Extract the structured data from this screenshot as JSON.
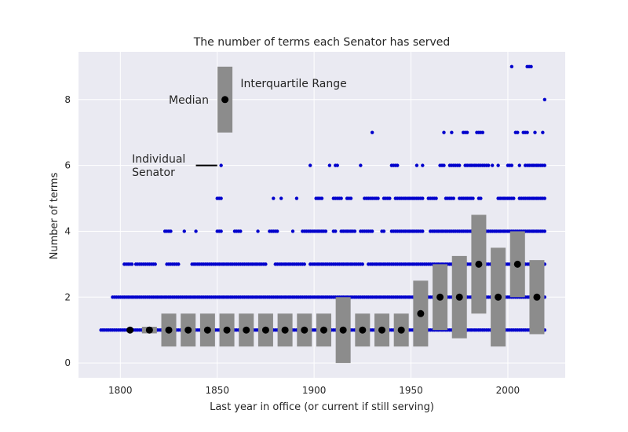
{
  "chart_data": {
    "type": "scatter",
    "title": "The number of terms each Senator has served",
    "xlabel": "Last year in office (or current if still serving)",
    "ylabel": "Number of terms",
    "xlim": [
      1778.4,
      2029.6
    ],
    "ylim": [
      -0.45,
      9.45
    ],
    "xticks": [
      1800,
      1850,
      1900,
      1950,
      2000
    ],
    "yticks": [
      0,
      2,
      4,
      6,
      8
    ],
    "grid": true,
    "background": "#eaeaf2",
    "colors": {
      "points": "#0000cc",
      "box": "#8c8c8c",
      "median": "#000000",
      "grid": "#ffffff"
    },
    "annotations": [
      {
        "text": "Interquartile Range",
        "x": 1862,
        "y": 8.5
      },
      {
        "text": "Median",
        "x": 1825,
        "y": 8
      },
      {
        "text": "Individual",
        "x": 1806,
        "y": 6.2
      },
      {
        "text": "Senator",
        "x": 1806,
        "y": 5.8
      }
    ],
    "legend_example": {
      "box": {
        "x": 1854,
        "q1": 7,
        "q3": 9
      },
      "median": {
        "x": 1854,
        "y": 8
      },
      "individual_line": {
        "x_start": 1839,
        "x_end": 1850,
        "y": 6
      }
    },
    "boxes": [
      {
        "x": 1805,
        "q1": 1,
        "median": 1,
        "q3": 1
      },
      {
        "x": 1815,
        "q1": 0.9,
        "median": 1,
        "q3": 1.1
      },
      {
        "x": 1825,
        "q1": 0.5,
        "median": 1,
        "q3": 1.5
      },
      {
        "x": 1835,
        "q1": 0.5,
        "median": 1,
        "q3": 1.5
      },
      {
        "x": 1845,
        "q1": 0.5,
        "median": 1,
        "q3": 1.5
      },
      {
        "x": 1855,
        "q1": 0.5,
        "median": 1,
        "q3": 1.5
      },
      {
        "x": 1865,
        "q1": 0.5,
        "median": 1,
        "q3": 1.5
      },
      {
        "x": 1875,
        "q1": 0.5,
        "median": 1,
        "q3": 1.5
      },
      {
        "x": 1885,
        "q1": 0.5,
        "median": 1,
        "q3": 1.5
      },
      {
        "x": 1895,
        "q1": 0.5,
        "median": 1,
        "q3": 1.5
      },
      {
        "x": 1905,
        "q1": 0.5,
        "median": 1,
        "q3": 1.5
      },
      {
        "x": 1915,
        "q1": 0,
        "median": 1,
        "q3": 2
      },
      {
        "x": 1925,
        "q1": 0.5,
        "median": 1,
        "q3": 1.5
      },
      {
        "x": 1935,
        "q1": 0.5,
        "median": 1,
        "q3": 1.5
      },
      {
        "x": 1945,
        "q1": 0.5,
        "median": 1,
        "q3": 1.5
      },
      {
        "x": 1955,
        "q1": 0.5,
        "median": 1.5,
        "q3": 2.5
      },
      {
        "x": 1965,
        "q1": 1,
        "median": 2,
        "q3": 3
      },
      {
        "x": 1975,
        "q1": 0.75,
        "median": 2,
        "q3": 3.25
      },
      {
        "x": 1985,
        "q1": 1.5,
        "median": 3,
        "q3": 4.5
      },
      {
        "x": 1995,
        "q1": 0.5,
        "median": 2,
        "q3": 3.5
      },
      {
        "x": 2005,
        "q1": 2,
        "median": 3,
        "q3": 4
      },
      {
        "x": 2015,
        "q1": 0.875,
        "median": 2,
        "q3": 3.125
      }
    ],
    "series": [
      {
        "y": 1,
        "segments": [
          [
            1790,
            2019
          ]
        ]
      },
      {
        "y": 2,
        "segments": [
          [
            1796,
            2019
          ]
        ]
      },
      {
        "y": 3,
        "segments": [
          [
            1802,
            1806
          ],
          [
            1808,
            1818
          ],
          [
            1824,
            1830
          ],
          [
            1837,
            1875
          ],
          [
            1880,
            1895
          ],
          [
            1898,
            1925
          ],
          [
            1928,
            2019
          ]
        ]
      },
      {
        "y": 4,
        "segments": [
          [
            1823,
            1825
          ],
          [
            1826,
            1826
          ],
          [
            1833,
            1833
          ],
          [
            1839,
            1839
          ],
          [
            1850,
            1852
          ],
          [
            1859,
            1862
          ],
          [
            1871,
            1871
          ],
          [
            1877,
            1881
          ],
          [
            1889,
            1889
          ],
          [
            1894,
            1906
          ],
          [
            1910,
            1911
          ],
          [
            1914,
            1921
          ],
          [
            1924,
            1930
          ],
          [
            1935,
            1936
          ],
          [
            1940,
            1956
          ],
          [
            1960,
            2019
          ]
        ]
      },
      {
        "y": 5,
        "segments": [
          [
            1850,
            1852
          ],
          [
            1879,
            1879
          ],
          [
            1883,
            1883
          ],
          [
            1891,
            1891
          ],
          [
            1901,
            1904
          ],
          [
            1910,
            1914
          ],
          [
            1917,
            1919
          ],
          [
            1926,
            1933
          ],
          [
            1936,
            1939
          ],
          [
            1942,
            1956
          ],
          [
            1959,
            1963
          ],
          [
            1968,
            1972
          ],
          [
            1975,
            1982
          ],
          [
            1985,
            1986
          ],
          [
            1995,
            2003
          ],
          [
            2006,
            2019
          ]
        ]
      },
      {
        "y": 6,
        "segments": [
          [
            1852,
            1852
          ],
          [
            1898,
            1898
          ],
          [
            1908,
            1908
          ],
          [
            1911,
            1912
          ],
          [
            1924,
            1924
          ],
          [
            1940,
            1943
          ],
          [
            1953,
            1953
          ],
          [
            1956,
            1956
          ],
          [
            1965,
            1967
          ],
          [
            1970,
            1975
          ],
          [
            1978,
            1990
          ],
          [
            1992,
            1992
          ],
          [
            1995,
            1995
          ],
          [
            2000,
            2002
          ],
          [
            2006,
            2006
          ],
          [
            2009,
            2019
          ]
        ]
      },
      {
        "y": 7,
        "segments": [
          [
            1930,
            1930
          ],
          [
            1967,
            1967
          ],
          [
            1971,
            1971
          ],
          [
            1977,
            1979
          ],
          [
            1984,
            1987
          ],
          [
            2004,
            2005
          ],
          [
            2008,
            2010
          ],
          [
            2014,
            2014
          ],
          [
            2018,
            2018
          ]
        ]
      },
      {
        "y": 8,
        "segments": [
          [
            2019,
            2019
          ]
        ]
      },
      {
        "y": 9,
        "segments": [
          [
            2002,
            2002
          ],
          [
            2010,
            2012
          ]
        ]
      }
    ]
  }
}
